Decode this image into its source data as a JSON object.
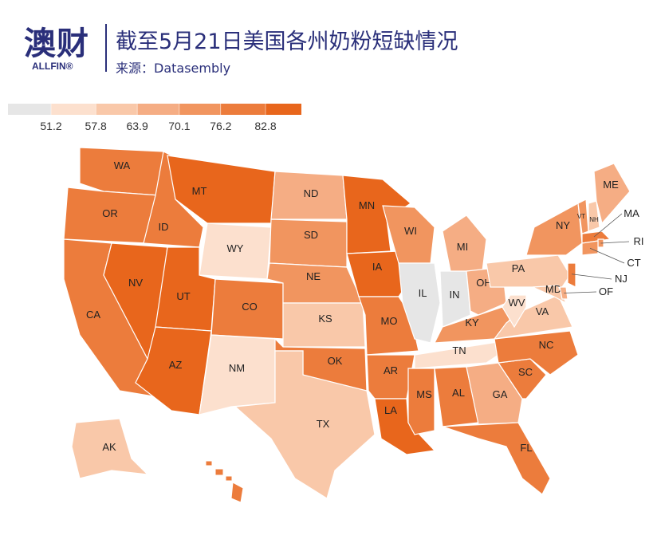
{
  "header": {
    "logo": "澳财",
    "logo_sub": "ALLFIN®",
    "title": "截至5月21日美国各州奶粉短缺情况",
    "source": "来源：Datasembly"
  },
  "legend": {
    "thresholds": [
      51.2,
      57.8,
      63.9,
      70.1,
      76.2,
      82.8
    ],
    "colors": [
      "#e6e6e6",
      "#fce0ce",
      "#f9c8a9",
      "#f5ad84",
      "#f1955f",
      "#ec7c3c",
      "#e8661c"
    ]
  },
  "states": [
    {
      "label": "WA",
      "color": "#ec7c3c"
    },
    {
      "label": "OR",
      "color": "#ec7c3c"
    },
    {
      "label": "CA",
      "color": "#ec7c3c"
    },
    {
      "label": "ID",
      "color": "#ec7c3c"
    },
    {
      "label": "NV",
      "color": "#e8661c"
    },
    {
      "label": "MT",
      "color": "#e8661c"
    },
    {
      "label": "WY",
      "color": "#fce0ce"
    },
    {
      "label": "UT",
      "color": "#e8661c"
    },
    {
      "label": "CO",
      "color": "#ec7c3c"
    },
    {
      "label": "AZ",
      "color": "#e8661c"
    },
    {
      "label": "NM",
      "color": "#fce0ce"
    },
    {
      "label": "ND",
      "color": "#f5ad84"
    },
    {
      "label": "SD",
      "color": "#f1955f"
    },
    {
      "label": "NE",
      "color": "#f1955f"
    },
    {
      "label": "KS",
      "color": "#f9c8a9"
    },
    {
      "label": "OK",
      "color": "#ec7c3c"
    },
    {
      "label": "TX",
      "color": "#f9c8a9"
    },
    {
      "label": "MN",
      "color": "#e8661c"
    },
    {
      "label": "IA",
      "color": "#e8661c"
    },
    {
      "label": "MO",
      "color": "#ec7c3c"
    },
    {
      "label": "AR",
      "color": "#ec7c3c"
    },
    {
      "label": "LA",
      "color": "#e8661c"
    },
    {
      "label": "WI",
      "color": "#f1955f"
    },
    {
      "label": "IL",
      "color": "#e6e6e6"
    },
    {
      "label": "IN",
      "color": "#e6e6e6"
    },
    {
      "label": "MI",
      "color": "#f5ad84"
    },
    {
      "label": "OH",
      "color": "#f5ad84"
    },
    {
      "label": "KY",
      "color": "#f1955f"
    },
    {
      "label": "TN",
      "color": "#fce0ce"
    },
    {
      "label": "MS",
      "color": "#ec7c3c"
    },
    {
      "label": "AL",
      "color": "#ec7c3c"
    },
    {
      "label": "GA",
      "color": "#f5ad84"
    },
    {
      "label": "FL",
      "color": "#ec7c3c"
    },
    {
      "label": "SC",
      "color": "#ec7c3c"
    },
    {
      "label": "NC",
      "color": "#ec7c3c"
    },
    {
      "label": "VA",
      "color": "#f9c8a9"
    },
    {
      "label": "WV",
      "color": "#fce0ce"
    },
    {
      "label": "PA",
      "color": "#f9c8a9"
    },
    {
      "label": "NY",
      "color": "#f1955f"
    },
    {
      "label": "VT",
      "color": "#f1955f"
    },
    {
      "label": "NH",
      "color": "#f9c8a9"
    },
    {
      "label": "ME",
      "color": "#f5ad84"
    },
    {
      "label": "MA",
      "color": "#ec7c3c"
    },
    {
      "label": "RI",
      "color": "#f1955f"
    },
    {
      "label": "CT",
      "color": "#f1955f"
    },
    {
      "label": "NJ",
      "color": "#ec7c3c"
    },
    {
      "label": "MD",
      "color": "#f9c8a9"
    },
    {
      "label": "OF",
      "color": "#f5ad84"
    },
    {
      "label": "AK",
      "color": "#f9c8a9"
    }
  ]
}
